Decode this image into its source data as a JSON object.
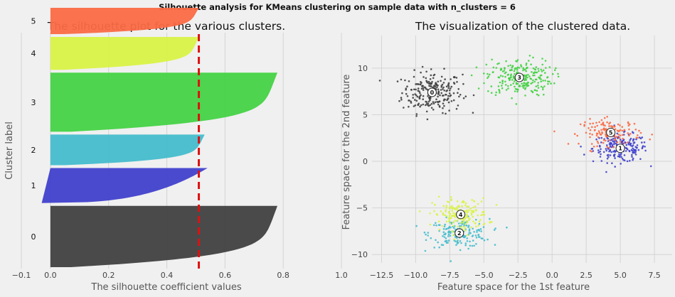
{
  "suptitle": "Silhouette analysis for KMeans clustering on sample data with n_clusters = 6",
  "chart_data": [
    {
      "type": "silhouette",
      "title": "The silhouette plot for the various clusters.",
      "xlabel": "The silhouette coefficient values",
      "ylabel": "Cluster label",
      "xlim": [
        -0.1,
        1.0
      ],
      "xticks": [
        "−0.1",
        "0.0",
        "0.2",
        "0.4",
        "0.6",
        "0.8",
        "1.0"
      ],
      "xtick_values": [
        -0.1,
        0.0,
        0.2,
        0.4,
        0.6,
        0.8,
        1.0
      ],
      "grid": true,
      "average_silhouette": 0.51,
      "clusters": [
        {
          "label": "0",
          "color": "#404040",
          "max": 0.78,
          "min": 0.0,
          "height": 0.28
        },
        {
          "label": "1",
          "color": "#4040cc",
          "max": 0.54,
          "min": -0.03,
          "height": 0.16
        },
        {
          "label": "2",
          "color": "#45bccc",
          "max": 0.53,
          "min": 0.0,
          "height": 0.14
        },
        {
          "label": "3",
          "color": "#44d244",
          "max": 0.78,
          "min": 0.0,
          "height": 0.27
        },
        {
          "label": "4",
          "color": "#d9f244",
          "max": 0.51,
          "min": 0.0,
          "height": 0.15
        },
        {
          "label": "5",
          "color": "#fa6a45",
          "max": 0.51,
          "min": 0.0,
          "height": 0.12
        }
      ]
    },
    {
      "type": "scatter",
      "title": "The visualization of the clustered data.",
      "xlabel": "Feature space for the 1st feature",
      "ylabel": "Feature space for the 2nd feature",
      "xlim": [
        -13.2,
        8.8
      ],
      "ylim": [
        -10.9,
        13.5
      ],
      "xticks": [
        "−12.5",
        "−10.0",
        "−7.5",
        "−5.0",
        "−2.5",
        "0.0",
        "2.5",
        "5.0",
        "7.5"
      ],
      "xtick_values": [
        -12.5,
        -10.0,
        -7.5,
        -5.0,
        -2.5,
        0.0,
        2.5,
        5.0,
        7.5
      ],
      "yticks": [
        "−10",
        "−5",
        "0",
        "5",
        "10"
      ],
      "ytick_values": [
        -10,
        -5,
        0,
        5,
        10
      ],
      "grid": true,
      "clusters": [
        {
          "label": "0",
          "color": "#404040",
          "center": [
            -8.8,
            7.4
          ],
          "spread": [
            1.1,
            1.1
          ],
          "n": 240
        },
        {
          "label": "1",
          "color": "#4040cc",
          "center": [
            5.0,
            1.4
          ],
          "spread": [
            1.0,
            0.75
          ],
          "n": 200
        },
        {
          "label": "2",
          "color": "#45bccc",
          "center": [
            -6.8,
            -7.7
          ],
          "spread": [
            1.1,
            0.75
          ],
          "n": 170
        },
        {
          "label": "3",
          "color": "#44d244",
          "center": [
            -2.4,
            9.0
          ],
          "spread": [
            1.2,
            1.0
          ],
          "n": 250
        },
        {
          "label": "4",
          "color": "#d9f244",
          "center": [
            -6.7,
            -5.7
          ],
          "spread": [
            1.0,
            0.85
          ],
          "n": 170
        },
        {
          "label": "5",
          "color": "#fa6a45",
          "center": [
            4.3,
            3.1
          ],
          "spread": [
            1.1,
            0.7
          ],
          "n": 140
        }
      ]
    }
  ]
}
